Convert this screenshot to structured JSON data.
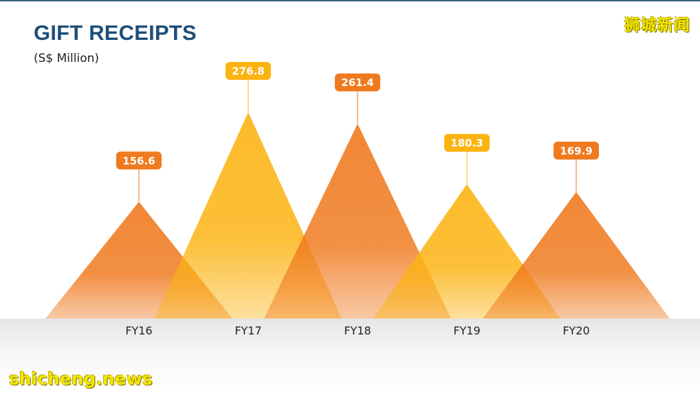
{
  "page": {
    "title": "GIFT RECEIPTS",
    "subtitle": "(S$ Million)"
  },
  "watermarks": {
    "top_right": "狮城新闻",
    "bottom_left": "shicheng.news"
  },
  "colors": {
    "title": "#1f4e79",
    "orange": "#ef7a1f",
    "yellow": "#fbb312",
    "watermark": "#f2e600"
  },
  "chart_data": {
    "type": "bar",
    "style": "triangle peaks with value callouts",
    "title": "GIFT RECEIPTS",
    "subtitle": "(S$ Million)",
    "xlabel": "",
    "ylabel": "",
    "categories": [
      "FY16",
      "FY17",
      "FY18",
      "FY19",
      "FY20"
    ],
    "values": [
      156.6,
      276.8,
      261.4,
      180.3,
      169.9
    ],
    "value_labels": [
      "156.6",
      "276.8",
      "261.4",
      "180.3",
      "169.9"
    ],
    "colors": [
      "#ef7a1f",
      "#fbb312",
      "#ef7a1f",
      "#fbb312",
      "#ef7a1f"
    ],
    "ylim": [
      0,
      276.8
    ],
    "grid": false,
    "legend": "none"
  }
}
